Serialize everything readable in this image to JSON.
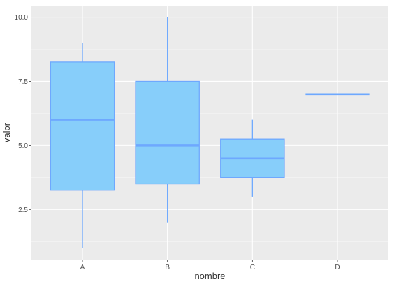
{
  "chart_data": {
    "type": "boxplot",
    "xlabel": "nombre",
    "ylabel": "valor",
    "categories": [
      "A",
      "B",
      "C",
      "D"
    ],
    "boxes": [
      {
        "category": "A",
        "min": 1,
        "q1": 3.25,
        "median": 6,
        "q3": 8.25,
        "max": 9
      },
      {
        "category": "B",
        "min": 2,
        "q1": 3.5,
        "median": 5,
        "q3": 7.5,
        "max": 10
      },
      {
        "category": "C",
        "min": 3,
        "q1": 3.75,
        "median": 4.5,
        "q3": 5.25,
        "max": 6
      },
      {
        "category": "D",
        "min": 7,
        "q1": 7,
        "median": 7,
        "q3": 7,
        "max": 7
      }
    ],
    "yticks": [
      2.5,
      5.0,
      7.5,
      10.0
    ],
    "yticklabels": [
      "2.5",
      "5.0",
      "7.5",
      "10.0"
    ],
    "ylim": [
      0.55,
      10.45
    ],
    "grid": true,
    "colors": {
      "panel": "#ebebeb",
      "grid_major": "#ffffff",
      "box_fill": "#87cefa",
      "box_line": "#6ea8fe",
      "tick_text": "#4d4d4d",
      "axis_title": "#333333"
    }
  }
}
